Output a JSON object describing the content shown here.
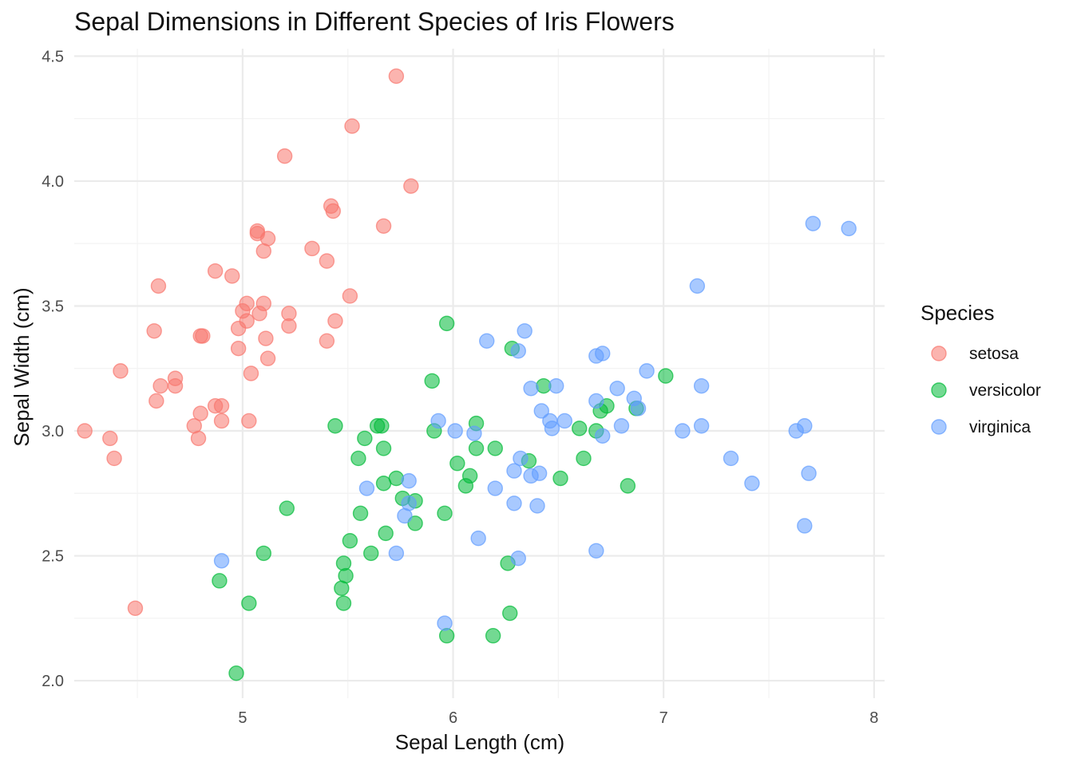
{
  "chart_data": {
    "type": "scatter",
    "title": "Sepal Dimensions in Different Species of Iris Flowers",
    "xlabel": "Sepal Length (cm)",
    "ylabel": "Sepal Width (cm)",
    "xlim": [
      4.2,
      8.05
    ],
    "ylim": [
      1.93,
      4.53
    ],
    "x_ticks": [
      5,
      6,
      7,
      8
    ],
    "x_minor_ticks": [
      4.5,
      5.5,
      6.5,
      7.5
    ],
    "y_ticks": [
      2.0,
      2.5,
      3.0,
      3.5,
      4.0,
      4.5
    ],
    "y_minor_ticks": [
      2.25,
      2.75,
      3.25,
      3.75,
      4.25
    ],
    "x_tick_labels": [
      "5",
      "6",
      "7",
      "8"
    ],
    "y_tick_labels": [
      "2.0",
      "2.5",
      "3.0",
      "3.5",
      "4.0",
      "4.5"
    ],
    "grid": true,
    "legend": {
      "title": "Species",
      "placement": "right"
    },
    "series": [
      {
        "name": "setosa",
        "color": "#F8766D",
        "points": [
          [
            4.25,
            3.0
          ],
          [
            4.37,
            2.97
          ],
          [
            4.39,
            2.89
          ],
          [
            4.42,
            3.24
          ],
          [
            4.49,
            2.29
          ],
          [
            4.58,
            3.4
          ],
          [
            4.59,
            3.12
          ],
          [
            4.6,
            3.58
          ],
          [
            4.61,
            3.18
          ],
          [
            4.68,
            3.21
          ],
          [
            4.68,
            3.18
          ],
          [
            4.77,
            3.02
          ],
          [
            4.79,
            2.97
          ],
          [
            4.8,
            3.07
          ],
          [
            4.8,
            3.38
          ],
          [
            4.81,
            3.38
          ],
          [
            4.87,
            3.64
          ],
          [
            4.87,
            3.1
          ],
          [
            4.9,
            3.1
          ],
          [
            4.9,
            3.04
          ],
          [
            4.95,
            3.62
          ],
          [
            4.98,
            3.33
          ],
          [
            4.98,
            3.41
          ],
          [
            5.0,
            3.48
          ],
          [
            5.02,
            3.51
          ],
          [
            5.02,
            3.44
          ],
          [
            5.03,
            3.04
          ],
          [
            5.04,
            3.23
          ],
          [
            5.07,
            3.79
          ],
          [
            5.07,
            3.8
          ],
          [
            5.08,
            3.47
          ],
          [
            5.1,
            3.51
          ],
          [
            5.1,
            3.72
          ],
          [
            5.11,
            3.37
          ],
          [
            5.12,
            3.77
          ],
          [
            5.12,
            3.29
          ],
          [
            5.2,
            4.1
          ],
          [
            5.22,
            3.47
          ],
          [
            5.22,
            3.42
          ],
          [
            5.33,
            3.73
          ],
          [
            5.4,
            3.36
          ],
          [
            5.4,
            3.68
          ],
          [
            5.42,
            3.9
          ],
          [
            5.43,
            3.88
          ],
          [
            5.44,
            3.44
          ],
          [
            5.51,
            3.54
          ],
          [
            5.52,
            4.22
          ],
          [
            5.67,
            3.82
          ],
          [
            5.73,
            4.42
          ],
          [
            5.8,
            3.98
          ]
        ]
      },
      {
        "name": "versicolor",
        "color": "#00BA38",
        "points": [
          [
            4.89,
            2.4
          ],
          [
            4.97,
            2.03
          ],
          [
            5.03,
            2.31
          ],
          [
            5.1,
            2.51
          ],
          [
            5.21,
            2.69
          ],
          [
            5.44,
            3.02
          ],
          [
            5.47,
            2.37
          ],
          [
            5.48,
            2.47
          ],
          [
            5.48,
            2.31
          ],
          [
            5.49,
            2.42
          ],
          [
            5.51,
            2.56
          ],
          [
            5.55,
            2.89
          ],
          [
            5.56,
            2.67
          ],
          [
            5.58,
            2.97
          ],
          [
            5.61,
            2.51
          ],
          [
            5.64,
            3.02
          ],
          [
            5.66,
            3.02
          ],
          [
            5.67,
            2.93
          ],
          [
            5.67,
            2.79
          ],
          [
            5.68,
            2.59
          ],
          [
            5.73,
            2.81
          ],
          [
            5.76,
            2.73
          ],
          [
            5.82,
            2.63
          ],
          [
            5.82,
            2.72
          ],
          [
            5.9,
            3.2
          ],
          [
            5.91,
            3.0
          ],
          [
            5.96,
            2.67
          ],
          [
            5.97,
            2.18
          ],
          [
            5.97,
            3.43
          ],
          [
            6.02,
            2.87
          ],
          [
            6.06,
            2.78
          ],
          [
            6.08,
            2.82
          ],
          [
            6.11,
            2.93
          ],
          [
            6.11,
            3.03
          ],
          [
            6.19,
            2.18
          ],
          [
            6.2,
            2.93
          ],
          [
            6.26,
            2.47
          ],
          [
            6.27,
            2.27
          ],
          [
            6.28,
            3.33
          ],
          [
            6.36,
            2.88
          ],
          [
            6.43,
            3.18
          ],
          [
            6.51,
            2.81
          ],
          [
            6.6,
            3.01
          ],
          [
            6.62,
            2.89
          ],
          [
            6.68,
            3.0
          ],
          [
            6.7,
            3.08
          ],
          [
            6.73,
            3.1
          ],
          [
            6.83,
            2.78
          ],
          [
            6.87,
            3.09
          ],
          [
            7.01,
            3.22
          ]
        ]
      },
      {
        "name": "virginica",
        "color": "#619CFF",
        "points": [
          [
            4.9,
            2.48
          ],
          [
            5.59,
            2.77
          ],
          [
            5.73,
            2.51
          ],
          [
            5.77,
            2.66
          ],
          [
            5.79,
            2.71
          ],
          [
            5.79,
            2.8
          ],
          [
            5.93,
            3.04
          ],
          [
            5.96,
            2.23
          ],
          [
            6.01,
            3.0
          ],
          [
            6.1,
            2.99
          ],
          [
            6.12,
            2.57
          ],
          [
            6.16,
            3.36
          ],
          [
            6.2,
            2.77
          ],
          [
            6.29,
            2.84
          ],
          [
            6.29,
            2.71
          ],
          [
            6.31,
            3.32
          ],
          [
            6.31,
            2.49
          ],
          [
            6.32,
            2.89
          ],
          [
            6.34,
            3.4
          ],
          [
            6.37,
            3.17
          ],
          [
            6.37,
            2.82
          ],
          [
            6.4,
            2.7
          ],
          [
            6.41,
            2.83
          ],
          [
            6.42,
            3.08
          ],
          [
            6.46,
            3.04
          ],
          [
            6.47,
            3.01
          ],
          [
            6.49,
            3.18
          ],
          [
            6.53,
            3.04
          ],
          [
            6.68,
            3.3
          ],
          [
            6.68,
            3.12
          ],
          [
            6.68,
            2.52
          ],
          [
            6.71,
            2.98
          ],
          [
            6.71,
            3.31
          ],
          [
            6.78,
            3.17
          ],
          [
            6.8,
            3.02
          ],
          [
            6.86,
            3.13
          ],
          [
            6.88,
            3.09
          ],
          [
            6.92,
            3.24
          ],
          [
            7.09,
            3.0
          ],
          [
            7.16,
            3.58
          ],
          [
            7.18,
            3.18
          ],
          [
            7.18,
            3.02
          ],
          [
            7.32,
            2.89
          ],
          [
            7.42,
            2.79
          ],
          [
            7.63,
            3.0
          ],
          [
            7.67,
            3.02
          ],
          [
            7.67,
            2.62
          ],
          [
            7.69,
            2.83
          ],
          [
            7.71,
            3.83
          ],
          [
            7.88,
            3.81
          ]
        ]
      }
    ]
  }
}
